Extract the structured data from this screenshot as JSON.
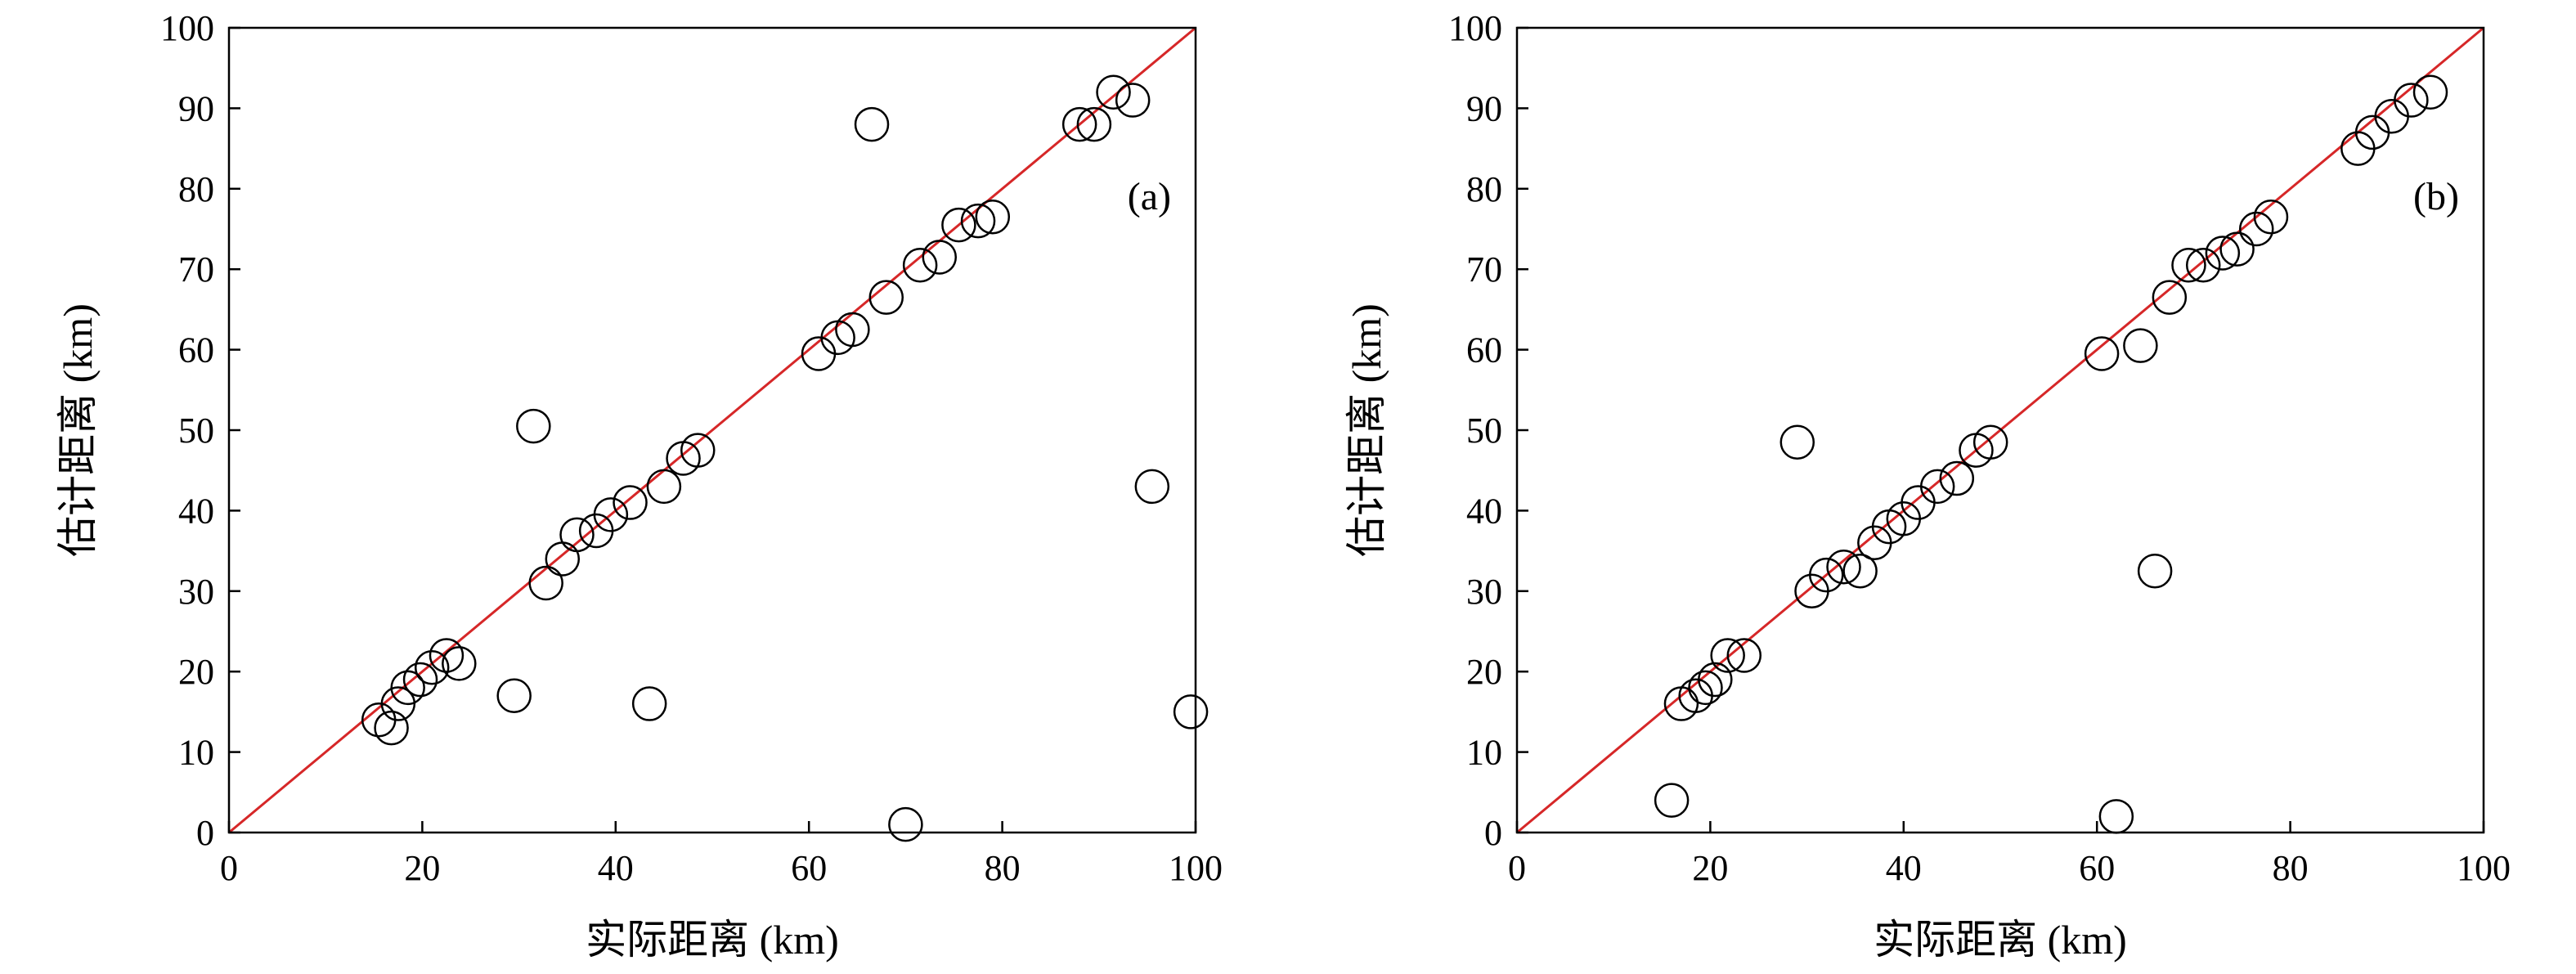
{
  "style": {
    "ref_line_color": "#d62728",
    "marker_edge_color": "#000000",
    "marker_fill": "none",
    "background": "#ffffff"
  },
  "chart_data": [
    {
      "type": "scatter",
      "panel_label": "(a)",
      "xlabel": "实际距离 (km)",
      "ylabel": "估计距离 (km)",
      "xlim": [
        0,
        100
      ],
      "ylim": [
        0,
        100
      ],
      "xticks": [
        "0",
        "20",
        "40",
        "60",
        "80",
        "100"
      ],
      "yticks": [
        "0",
        "10",
        "20",
        "30",
        "40",
        "50",
        "60",
        "70",
        "80",
        "90",
        "100"
      ],
      "grid": false,
      "reference_line": "y = x",
      "points": [
        [
          15.5,
          14.0
        ],
        [
          16.8,
          13.0
        ],
        [
          17.5,
          16.0
        ],
        [
          18.5,
          18.0
        ],
        [
          19.8,
          19.0
        ],
        [
          21.0,
          20.5
        ],
        [
          22.5,
          22.0
        ],
        [
          23.8,
          21.0
        ],
        [
          29.5,
          17.0
        ],
        [
          31.5,
          50.5
        ],
        [
          32.8,
          31.0
        ],
        [
          34.5,
          34.0
        ],
        [
          36.0,
          37.0
        ],
        [
          38.0,
          37.5
        ],
        [
          39.5,
          39.5
        ],
        [
          41.5,
          41.0
        ],
        [
          45.0,
          43.0
        ],
        [
          47.0,
          46.5
        ],
        [
          48.5,
          47.5
        ],
        [
          43.5,
          16.0
        ],
        [
          61.0,
          59.5
        ],
        [
          63.0,
          61.5
        ],
        [
          64.5,
          62.5
        ],
        [
          66.5,
          88.0
        ],
        [
          68.0,
          66.5
        ],
        [
          71.5,
          70.5
        ],
        [
          73.5,
          71.5
        ],
        [
          75.5,
          75.5
        ],
        [
          77.5,
          76.0
        ],
        [
          79.0,
          76.5
        ],
        [
          70.0,
          1.0
        ],
        [
          88.0,
          88.0
        ],
        [
          89.5,
          88.0
        ],
        [
          91.5,
          92.0
        ],
        [
          93.5,
          91.0
        ],
        [
          95.5,
          43.0
        ],
        [
          99.5,
          15.0
        ]
      ]
    },
    {
      "type": "scatter",
      "panel_label": "(b)",
      "xlabel": "实际距离 (km)",
      "ylabel": "估计距离 (km)",
      "xlim": [
        0,
        100
      ],
      "ylim": [
        0,
        100
      ],
      "xticks": [
        "0",
        "20",
        "40",
        "60",
        "80",
        "100"
      ],
      "yticks": [
        "0",
        "10",
        "20",
        "30",
        "40",
        "50",
        "60",
        "70",
        "80",
        "90",
        "100"
      ],
      "grid": false,
      "reference_line": "y = x",
      "points": [
        [
          16.0,
          4.0
        ],
        [
          17.0,
          16.0
        ],
        [
          18.5,
          17.0
        ],
        [
          19.5,
          18.0
        ],
        [
          20.5,
          19.0
        ],
        [
          21.8,
          22.0
        ],
        [
          23.5,
          22.0
        ],
        [
          29.0,
          48.5
        ],
        [
          30.5,
          30.0
        ],
        [
          32.0,
          32.0
        ],
        [
          33.8,
          33.0
        ],
        [
          35.5,
          32.5
        ],
        [
          37.0,
          36.0
        ],
        [
          38.5,
          38.0
        ],
        [
          40.0,
          39.0
        ],
        [
          41.5,
          41.0
        ],
        [
          43.5,
          43.0
        ],
        [
          45.5,
          44.0
        ],
        [
          47.5,
          47.5
        ],
        [
          49.0,
          48.5
        ],
        [
          60.5,
          59.5
        ],
        [
          64.5,
          60.5
        ],
        [
          66.0,
          32.5
        ],
        [
          62.0,
          2.0
        ],
        [
          67.5,
          66.5
        ],
        [
          69.5,
          70.5
        ],
        [
          71.0,
          70.5
        ],
        [
          73.0,
          72.0
        ],
        [
          74.5,
          72.5
        ],
        [
          76.5,
          75.0
        ],
        [
          78.0,
          76.5
        ],
        [
          87.0,
          85.0
        ],
        [
          88.5,
          87.0
        ],
        [
          90.5,
          89.0
        ],
        [
          92.5,
          91.0
        ],
        [
          94.5,
          92.0
        ]
      ]
    }
  ]
}
